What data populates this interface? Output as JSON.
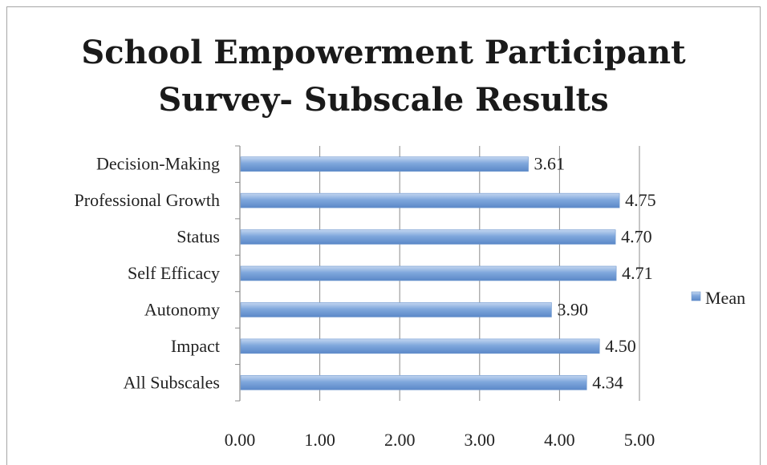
{
  "chart_data": {
    "type": "bar",
    "orientation": "horizontal",
    "title_lines": [
      "School Empowerment Participant",
      "Survey- Subscale Results"
    ],
    "categories": [
      "Decision-Making",
      "Professional Growth",
      "Status",
      "Self Efficacy",
      "Autonomy",
      "Impact",
      "All Subscales"
    ],
    "series": [
      {
        "name": "Mean",
        "values": [
          3.61,
          4.75,
          4.7,
          4.71,
          3.9,
          4.5,
          4.34
        ],
        "color": "#7aa3d9"
      }
    ],
    "value_labels": [
      "3.61",
      "4.75",
      "4.70",
      "4.71",
      "3.90",
      "4.50",
      "4.34"
    ],
    "xlim": [
      0,
      5
    ],
    "x_ticks": [
      "0.00",
      "1.00",
      "2.00",
      "3.00",
      "4.00",
      "5.00"
    ],
    "grid": true,
    "legend_position": "right"
  }
}
